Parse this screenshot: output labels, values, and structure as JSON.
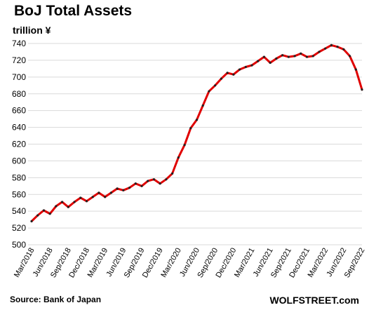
{
  "chart_data": {
    "type": "line",
    "title": "BoJ Total Assets",
    "ylabel": "trillion ¥",
    "xlabel": "",
    "ylim": [
      500,
      740
    ],
    "yticks": [
      500,
      520,
      540,
      560,
      580,
      600,
      620,
      640,
      660,
      680,
      700,
      720,
      740
    ],
    "grid": true,
    "line_color": "#e00000",
    "marker_color": "#222222",
    "x_tick_labels": [
      "Mar/2018",
      "Jun/2018",
      "Sep/2018",
      "Dec/2018",
      "Mar/2019",
      "Jun/2019",
      "Sep/2019",
      "Dec/2019",
      "Mar/2020",
      "Jun/2020",
      "Sep/2020",
      "Dec/2020",
      "Mar/2021",
      "Jun/2021",
      "Sep/2021",
      "Dec/2021",
      "Mar/2022",
      "Jun/2022",
      "Sep/2022"
    ],
    "x": [
      "Mar/2018",
      "Apr/2018",
      "May/2018",
      "Jun/2018",
      "Jul/2018",
      "Aug/2018",
      "Sep/2018",
      "Oct/2018",
      "Nov/2018",
      "Dec/2018",
      "Jan/2019",
      "Feb/2019",
      "Mar/2019",
      "Apr/2019",
      "May/2019",
      "Jun/2019",
      "Jul/2019",
      "Aug/2019",
      "Sep/2019",
      "Oct/2019",
      "Nov/2019",
      "Dec/2019",
      "Jan/2020",
      "Feb/2020",
      "Mar/2020",
      "Apr/2020",
      "May/2020",
      "Jun/2020",
      "Jul/2020",
      "Aug/2020",
      "Sep/2020",
      "Oct/2020",
      "Nov/2020",
      "Dec/2020",
      "Jan/2021",
      "Feb/2021",
      "Mar/2021",
      "Apr/2021",
      "May/2021",
      "Jun/2021",
      "Jul/2021",
      "Aug/2021",
      "Sep/2021",
      "Oct/2021",
      "Nov/2021",
      "Dec/2021",
      "Jan/2022",
      "Feb/2022",
      "Mar/2022",
      "Apr/2022",
      "May/2022",
      "Jun/2022",
      "Jul/2022",
      "Aug/2022",
      "Sep/2022"
    ],
    "series": [
      {
        "values": [
          528,
          535,
          541,
          537,
          546,
          551,
          545,
          551,
          556,
          552,
          557,
          562,
          557,
          562,
          567,
          565,
          568,
          573,
          570,
          576,
          578,
          573,
          578,
          585,
          604,
          619,
          639,
          649,
          666,
          683,
          690,
          698,
          705,
          703,
          709,
          712,
          714,
          719,
          724,
          717,
          722,
          726,
          724,
          725,
          728,
          724,
          725,
          730,
          734,
          738,
          736,
          733,
          725,
          709,
          685
        ]
      }
    ]
  },
  "footer": {
    "source": "Source: Bank of Japan",
    "brand": "WOLFSTREET.com"
  }
}
